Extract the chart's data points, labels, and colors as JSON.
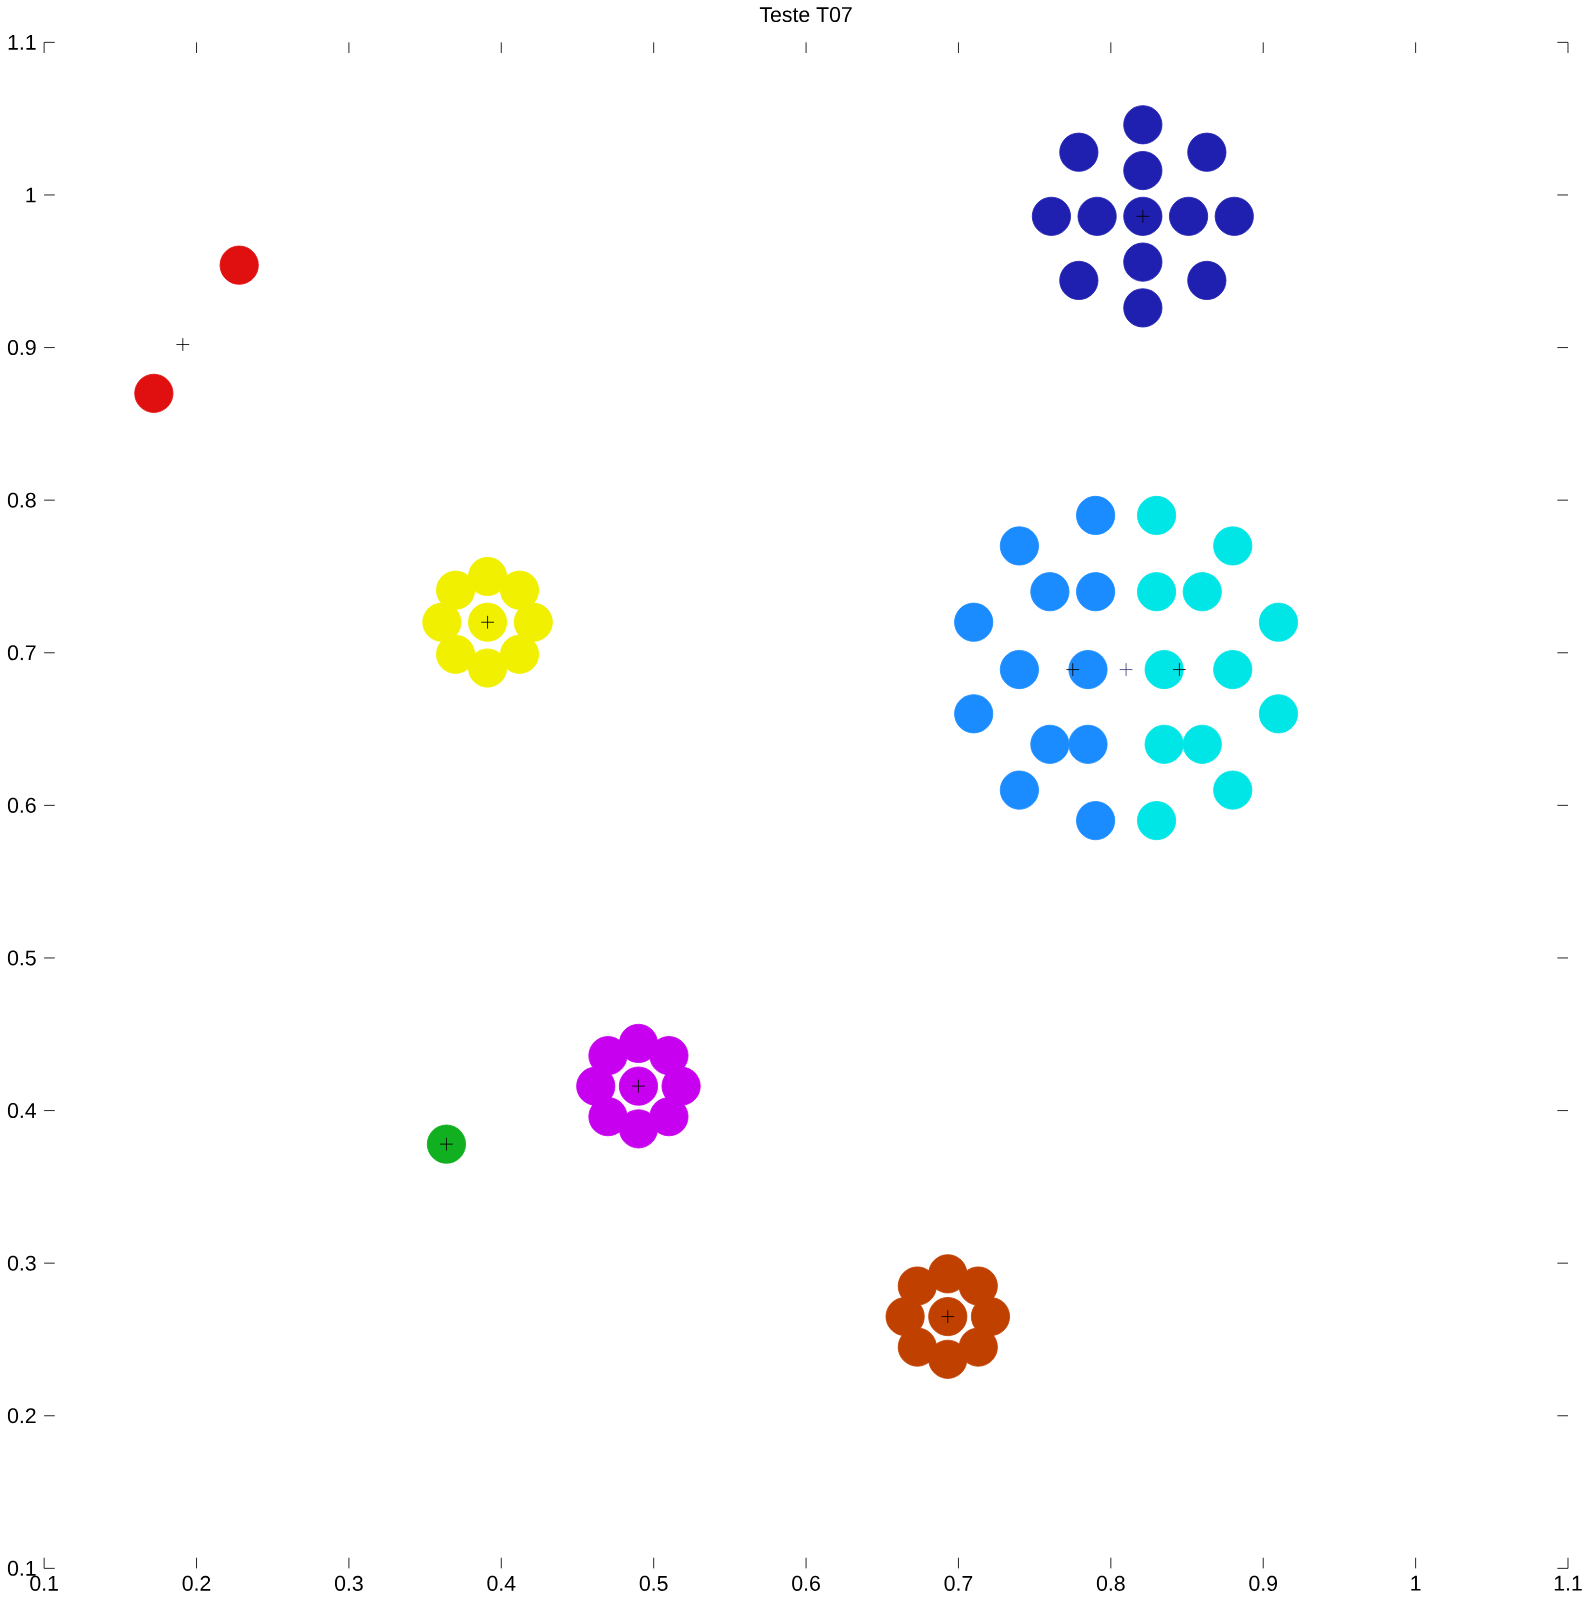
{
  "chart_data": {
    "type": "scatter",
    "title": "Teste T07",
    "marker": "circle",
    "grid": false,
    "xlim": [
      0.1,
      1.1
    ],
    "ylim": [
      0.1,
      1.1
    ],
    "xticks": [
      0.1,
      0.2,
      0.3,
      0.4,
      0.5,
      0.6,
      0.7,
      0.8,
      0.9,
      1,
      1.1
    ],
    "yticks": [
      0.1,
      0.2,
      0.3,
      0.4,
      0.5,
      0.6,
      0.7,
      0.8,
      0.9,
      1,
      1.1
    ],
    "series": [
      {
        "color": "#2020b0",
        "x": [
          0.821,
          0.881,
          0.863,
          0.821,
          0.779,
          0.761,
          0.779,
          0.821,
          0.863,
          0.851,
          0.821,
          0.791,
          0.821
        ],
        "values": [
          0.986,
          0.986,
          1.028,
          1.046,
          1.028,
          0.986,
          0.944,
          0.926,
          0.944,
          0.986,
          1.016,
          0.986,
          0.956
        ]
      },
      {
        "color": "#1a8cff",
        "x": [
          0.79,
          0.74,
          0.71,
          0.71,
          0.74,
          0.79,
          0.785,
          0.74,
          0.76,
          0.76,
          0.79,
          0.785
        ],
        "values": [
          0.79,
          0.77,
          0.72,
          0.66,
          0.61,
          0.59,
          0.689,
          0.689,
          0.74,
          0.64,
          0.74,
          0.64
        ]
      },
      {
        "color": "#00e5e5",
        "x": [
          0.83,
          0.88,
          0.91,
          0.91,
          0.88,
          0.83,
          0.835,
          0.88,
          0.86,
          0.86,
          0.83,
          0.835
        ],
        "values": [
          0.79,
          0.77,
          0.72,
          0.66,
          0.61,
          0.59,
          0.689,
          0.689,
          0.74,
          0.64,
          0.74,
          0.64
        ]
      },
      {
        "color": "#f0f000",
        "x": [
          0.391,
          0.421,
          0.412,
          0.391,
          0.37,
          0.361,
          0.37,
          0.391,
          0.412
        ],
        "values": [
          0.72,
          0.72,
          0.741,
          0.75,
          0.741,
          0.72,
          0.699,
          0.69,
          0.699
        ]
      },
      {
        "color": "#c800f0",
        "x": [
          0.49,
          0.518,
          0.51,
          0.49,
          0.47,
          0.462,
          0.47,
          0.49,
          0.51
        ],
        "values": [
          0.416,
          0.416,
          0.436,
          0.444,
          0.436,
          0.416,
          0.396,
          0.388,
          0.396
        ]
      },
      {
        "color": "#c04000",
        "x": [
          0.693,
          0.721,
          0.713,
          0.693,
          0.673,
          0.665,
          0.673,
          0.693,
          0.713
        ],
        "values": [
          0.265,
          0.265,
          0.285,
          0.293,
          0.285,
          0.265,
          0.245,
          0.237,
          0.245
        ]
      },
      {
        "color": "#10b020",
        "x": [
          0.364
        ],
        "values": [
          0.378
        ]
      },
      {
        "color": "#e01010",
        "x": [
          0.228,
          0.172
        ],
        "values": [
          0.954,
          0.87
        ]
      },
      {
        "color": "#000000",
        "marker": "cross",
        "x": [
          0.821,
          0.775,
          0.845,
          0.391,
          0.49,
          0.364,
          0.693,
          0.191
        ],
        "values": [
          0.986,
          0.689,
          0.689,
          0.72,
          0.416,
          0.378,
          0.265,
          0.902
        ]
      },
      {
        "color": "#404080",
        "marker": "cross",
        "x": [
          0.81
        ],
        "values": [
          0.689
        ]
      }
    ]
  }
}
